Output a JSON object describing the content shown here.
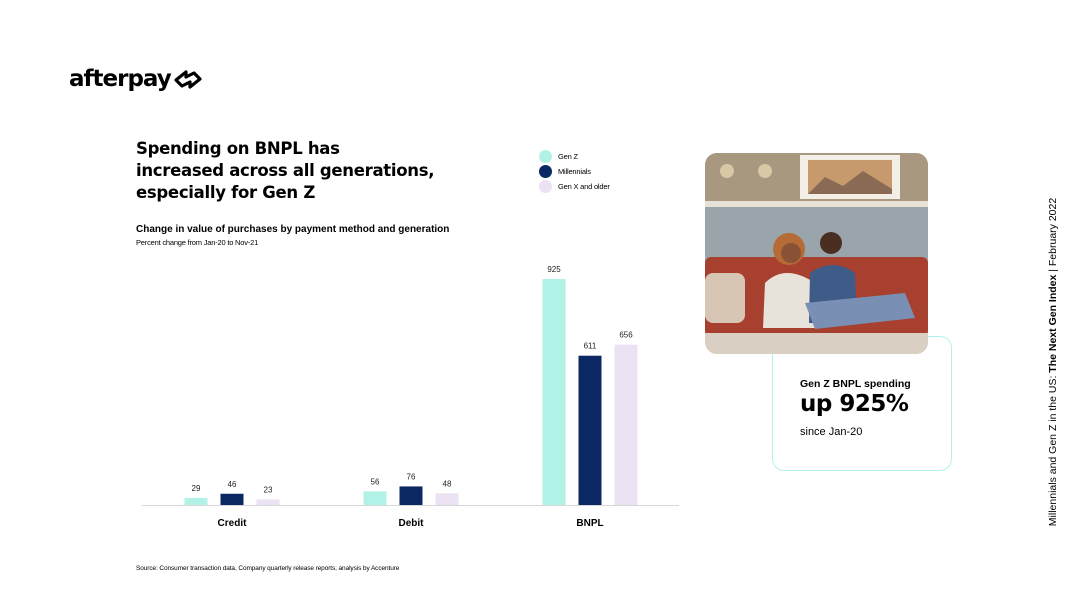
{
  "brand": {
    "name": "afterpay",
    "mark": "afterpay-loop-icon"
  },
  "headline": [
    "Spending on BNPL has",
    "increased across all generations,",
    "especially for Gen Z"
  ],
  "chart_title": "Change in value of purchases by payment method and generation",
  "chart_subtitle": "Percent change from Jan-20 to Nov-21",
  "source": "Source: Consumer transaction data, Company quarterly release reports, analysis by Accenture",
  "callout": {
    "label": "Gen Z BNPL spending",
    "value": "up 925%",
    "sub": "since Jan-20"
  },
  "side_text": {
    "prefix": "Millennials and Gen Z in the US: ",
    "title": "The Next Gen Index",
    "separator": " | ",
    "date": "February 2022"
  },
  "colors": {
    "gen_z": "#b2f2e6",
    "millennials": "#0b2862",
    "gen_x": "#ebe2f3",
    "callout_border": "#b2f2ec"
  },
  "photo": {
    "icon": "couple-on-sofa-photo"
  },
  "chart_data": {
    "type": "bar",
    "categories": [
      "Credit",
      "Debit",
      "BNPL"
    ],
    "series": [
      {
        "name": "Gen Z",
        "values": [
          29,
          56,
          925
        ]
      },
      {
        "name": "Millennials",
        "values": [
          46,
          76,
          611
        ]
      },
      {
        "name": "Gen X and older",
        "values": [
          23,
          48,
          656
        ]
      }
    ],
    "ylim": [
      0,
      925
    ],
    "grid": false,
    "legend_position": "top",
    "data_labels": true
  }
}
